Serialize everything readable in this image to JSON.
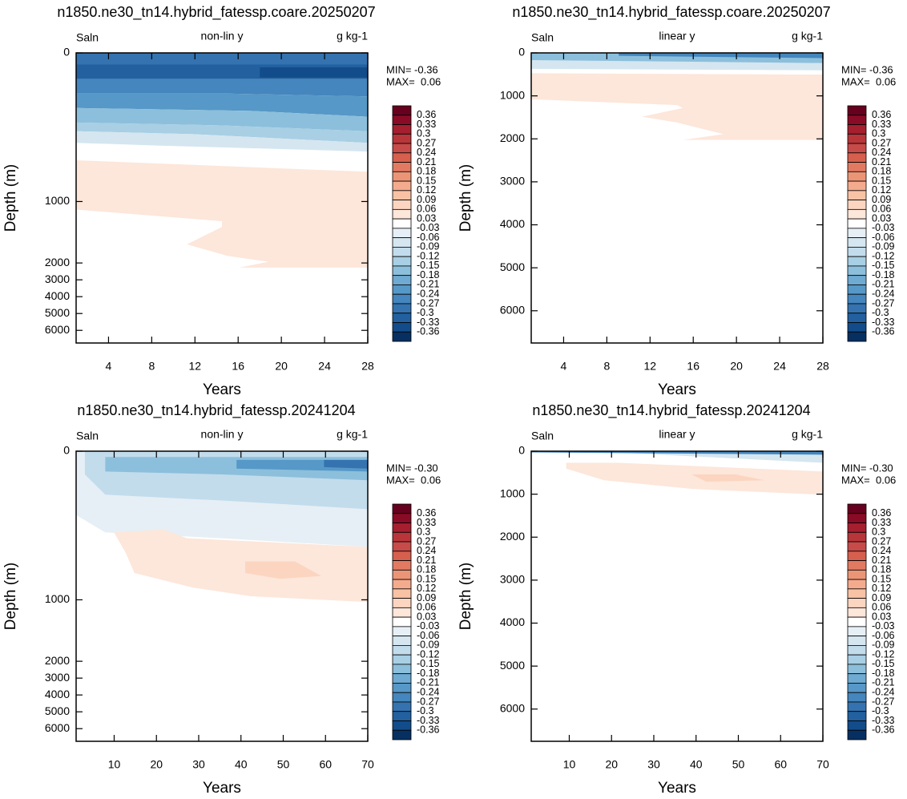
{
  "chart_data": [
    {
      "type": "contour",
      "title": "n1850.ne30_tn14.hybrid_fatessp.coare.20250207",
      "left_label": "Saln",
      "center_label": "non-lin y",
      "right_label": "g kg-1",
      "x_label": "Years",
      "y_label": "Depth (m)",
      "xlim": [
        1,
        28
      ],
      "xticks": [
        4,
        8,
        12,
        16,
        20,
        24,
        28
      ],
      "ylim": [
        0,
        6750
      ],
      "yticks": [
        0,
        1000,
        2000,
        3000,
        4000,
        5000,
        6000
      ],
      "y_scale": "nonlinear",
      "min_text": "MIN= -0.36",
      "max_text": "MAX=  0.06",
      "colorbar": {
        "levels": [
          0.36,
          0.33,
          0.3,
          0.27,
          0.24,
          0.21,
          0.18,
          0.15,
          0.12,
          0.09,
          0.06,
          0.03,
          -0.03,
          -0.06,
          -0.09,
          -0.12,
          -0.15,
          -0.18,
          -0.21,
          -0.24,
          -0.27,
          -0.3,
          -0.33,
          -0.36
        ],
        "colors": [
          "#67001f",
          "#8a0b25",
          "#a51f2f",
          "#b8363a",
          "#c74b48",
          "#d6604d",
          "#e27a62",
          "#ec9576",
          "#f4ab8d",
          "#f8c2a5",
          "#fbd5c0",
          "#fde6da",
          "#ffffff",
          "#e6eff5",
          "#d5e6f0",
          "#c2dcec",
          "#a8cfe4",
          "#8cbfdb",
          "#6eaad1",
          "#5698c7",
          "#4486bd",
          "#3473b0",
          "#22609f",
          "#124c8a",
          "#053061"
        ]
      }
    },
    {
      "type": "contour",
      "title": "n1850.ne30_tn14.hybrid_fatessp.coare.20250207",
      "left_label": "Saln",
      "center_label": "linear y",
      "right_label": "g kg-1",
      "x_label": "Years",
      "y_label": "Depth (m)",
      "xlim": [
        1,
        28
      ],
      "xticks": [
        4,
        8,
        12,
        16,
        20,
        24,
        28
      ],
      "ylim": [
        0,
        6750
      ],
      "yticks": [
        0,
        1000,
        2000,
        3000,
        4000,
        5000,
        6000
      ],
      "y_scale": "linear",
      "min_text": "MIN= -0.36",
      "max_text": "MAX=  0.06",
      "colorbar": {
        "levels": [
          0.36,
          0.33,
          0.3,
          0.27,
          0.24,
          0.21,
          0.18,
          0.15,
          0.12,
          0.09,
          0.06,
          0.03,
          -0.03,
          -0.06,
          -0.09,
          -0.12,
          -0.15,
          -0.18,
          -0.21,
          -0.24,
          -0.27,
          -0.3,
          -0.33,
          -0.36
        ],
        "colors": [
          "#67001f",
          "#8a0b25",
          "#a51f2f",
          "#b8363a",
          "#c74b48",
          "#d6604d",
          "#e27a62",
          "#ec9576",
          "#f4ab8d",
          "#f8c2a5",
          "#fbd5c0",
          "#fde6da",
          "#ffffff",
          "#e6eff5",
          "#d5e6f0",
          "#c2dcec",
          "#a8cfe4",
          "#8cbfdb",
          "#6eaad1",
          "#5698c7",
          "#4486bd",
          "#3473b0",
          "#22609f",
          "#124c8a",
          "#053061"
        ]
      }
    },
    {
      "type": "contour",
      "title": "n1850.ne30_tn14.hybrid_fatessp.20241204",
      "left_label": "Saln",
      "center_label": "non-lin y",
      "right_label": "g kg-1",
      "x_label": "Years",
      "y_label": "Depth (m)",
      "xlim": [
        1,
        70
      ],
      "xticks": [
        10,
        20,
        30,
        40,
        50,
        60,
        70
      ],
      "ylim": [
        0,
        6750
      ],
      "yticks": [
        0,
        1000,
        2000,
        3000,
        4000,
        5000,
        6000
      ],
      "y_scale": "nonlinear",
      "min_text": "MIN= -0.30",
      "max_text": "MAX=  0.06",
      "colorbar": {
        "levels": [
          0.36,
          0.33,
          0.3,
          0.27,
          0.24,
          0.21,
          0.18,
          0.15,
          0.12,
          0.09,
          0.06,
          0.03,
          -0.03,
          -0.06,
          -0.09,
          -0.12,
          -0.15,
          -0.18,
          -0.21,
          -0.24,
          -0.27,
          -0.3,
          -0.33,
          -0.36
        ],
        "colors": [
          "#67001f",
          "#8a0b25",
          "#a51f2f",
          "#b8363a",
          "#c74b48",
          "#d6604d",
          "#e27a62",
          "#ec9576",
          "#f4ab8d",
          "#f8c2a5",
          "#fbd5c0",
          "#fde6da",
          "#ffffff",
          "#e6eff5",
          "#d5e6f0",
          "#c2dcec",
          "#a8cfe4",
          "#8cbfdb",
          "#6eaad1",
          "#5698c7",
          "#4486bd",
          "#3473b0",
          "#22609f",
          "#124c8a",
          "#053061"
        ]
      }
    },
    {
      "type": "contour",
      "title": "n1850.ne30_tn14.hybrid_fatessp.20241204",
      "left_label": "Saln",
      "center_label": "linear y",
      "right_label": "g kg-1",
      "x_label": "Years",
      "y_label": "Depth (m)",
      "xlim": [
        1,
        70
      ],
      "xticks": [
        10,
        20,
        30,
        40,
        50,
        60,
        70
      ],
      "ylim": [
        0,
        6750
      ],
      "yticks": [
        0,
        1000,
        2000,
        3000,
        4000,
        5000,
        6000
      ],
      "y_scale": "linear",
      "min_text": "MIN= -0.30",
      "max_text": "MAX=  0.06",
      "colorbar": {
        "levels": [
          0.36,
          0.33,
          0.3,
          0.27,
          0.24,
          0.21,
          0.18,
          0.15,
          0.12,
          0.09,
          0.06,
          0.03,
          -0.03,
          -0.06,
          -0.09,
          -0.12,
          -0.15,
          -0.18,
          -0.21,
          -0.24,
          -0.27,
          -0.3,
          -0.33,
          -0.36
        ],
        "colors": [
          "#67001f",
          "#8a0b25",
          "#a51f2f",
          "#b8363a",
          "#c74b48",
          "#d6604d",
          "#e27a62",
          "#ec9576",
          "#f4ab8d",
          "#f8c2a5",
          "#fbd5c0",
          "#fde6da",
          "#ffffff",
          "#e6eff5",
          "#d5e6f0",
          "#c2dcec",
          "#a8cfe4",
          "#8cbfdb",
          "#6eaad1",
          "#5698c7",
          "#4486bd",
          "#3473b0",
          "#22609f",
          "#124c8a",
          "#053061"
        ]
      }
    }
  ]
}
